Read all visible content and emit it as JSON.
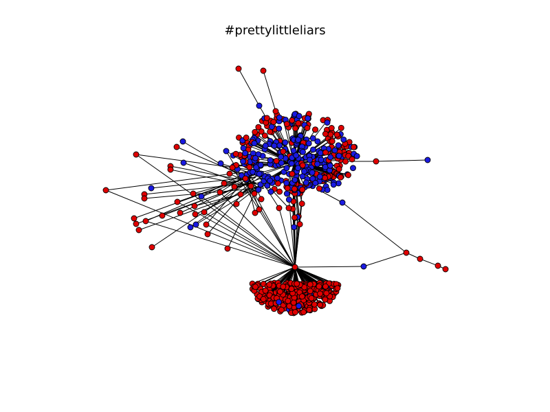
{
  "figure": {
    "title": "#prettylittleliars"
  },
  "graph": {
    "node_colors": {
      "red": "#e00000",
      "blue": "#1a1ae0",
      "outline": "#000000",
      "edge": "#000000"
    },
    "clusters": [
      {
        "name": "upper-cluster",
        "outer_color": "red",
        "inner_color": "blue",
        "outer_count": 230,
        "inner_count": 160
      },
      {
        "name": "lower-cluster",
        "color": "red",
        "count": 300
      },
      {
        "name": "connector-stem",
        "color": "mixed",
        "count": 14
      },
      {
        "name": "left-periphery",
        "color": "mixed",
        "count": 60
      },
      {
        "name": "right-periphery",
        "color": "mixed",
        "count": 7
      }
    ]
  }
}
